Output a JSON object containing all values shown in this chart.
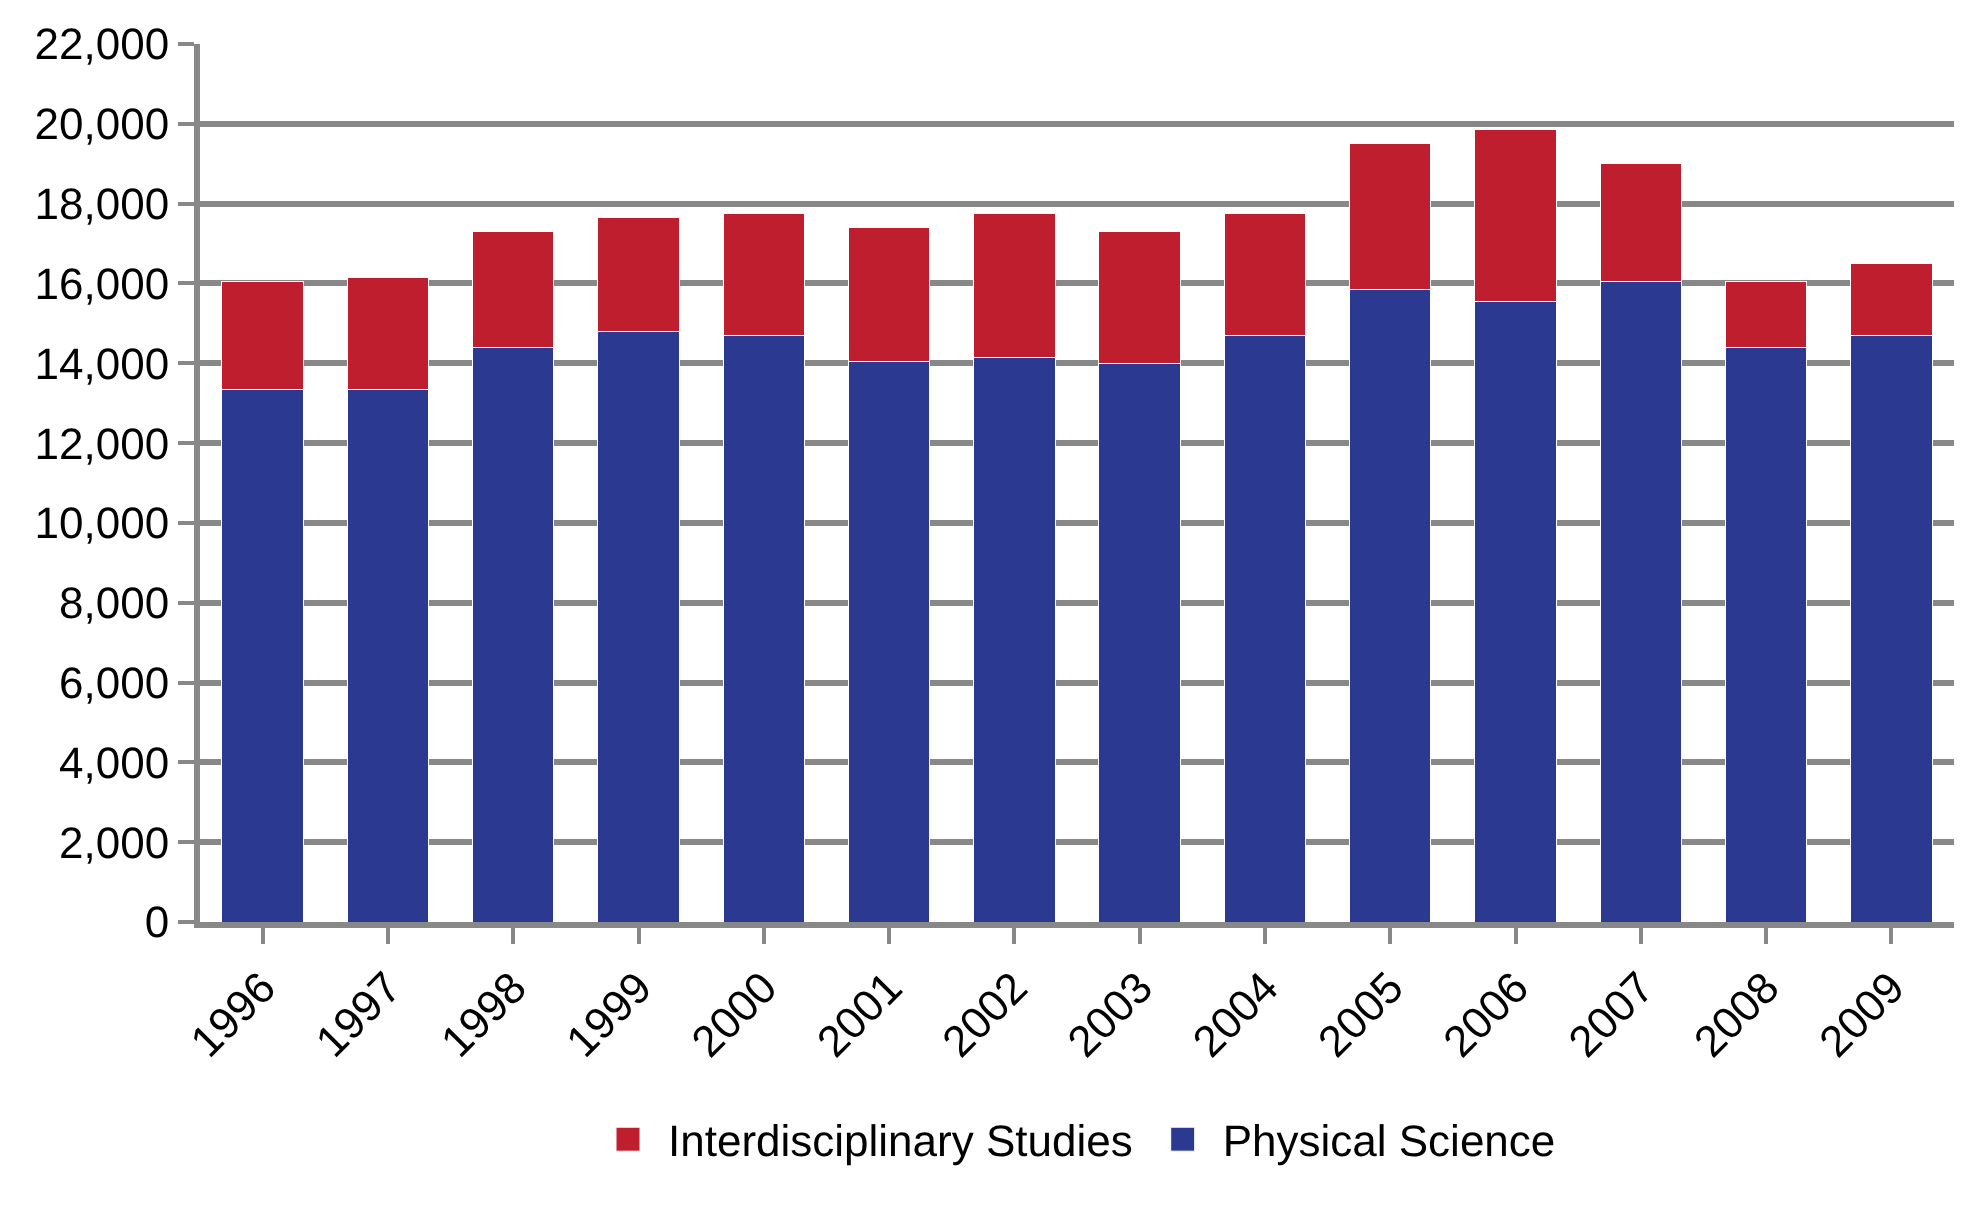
{
  "chart_data": {
    "type": "bar",
    "stacked": true,
    "categories": [
      "1996",
      "1997",
      "1998",
      "1999",
      "2000",
      "2001",
      "2002",
      "2003",
      "2004",
      "2005",
      "2006",
      "2007",
      "2008",
      "2009"
    ],
    "series": [
      {
        "name": "Physical Science",
        "color": "#2b3990",
        "values": [
          13350,
          13350,
          14400,
          14800,
          14700,
          14050,
          14150,
          14000,
          14700,
          15850,
          15550,
          16050,
          14400,
          14700
        ]
      },
      {
        "name": "Interdisciplinary Studies",
        "color": "#be1e2d",
        "values": [
          2700,
          2800,
          2900,
          2850,
          3050,
          3350,
          3600,
          3300,
          3050,
          3650,
          4300,
          2950,
          1650,
          1800
        ]
      }
    ],
    "ylim": [
      0,
      22000
    ],
    "yticks": [
      {
        "value": 0,
        "label": "0"
      },
      {
        "value": 2000,
        "label": "2,000"
      },
      {
        "value": 4000,
        "label": "4,000"
      },
      {
        "value": 6000,
        "label": "6,000"
      },
      {
        "value": 8000,
        "label": "8,000"
      },
      {
        "value": 10000,
        "label": "10,000"
      },
      {
        "value": 12000,
        "label": "12,000"
      },
      {
        "value": 14000,
        "label": "14,000"
      },
      {
        "value": 16000,
        "label": "16,000"
      },
      {
        "value": 18000,
        "label": "18,000"
      },
      {
        "value": 20000,
        "label": "20,000"
      },
      {
        "value": 22000,
        "label": "22,000"
      }
    ],
    "grid": "y",
    "legend": "bottom"
  }
}
